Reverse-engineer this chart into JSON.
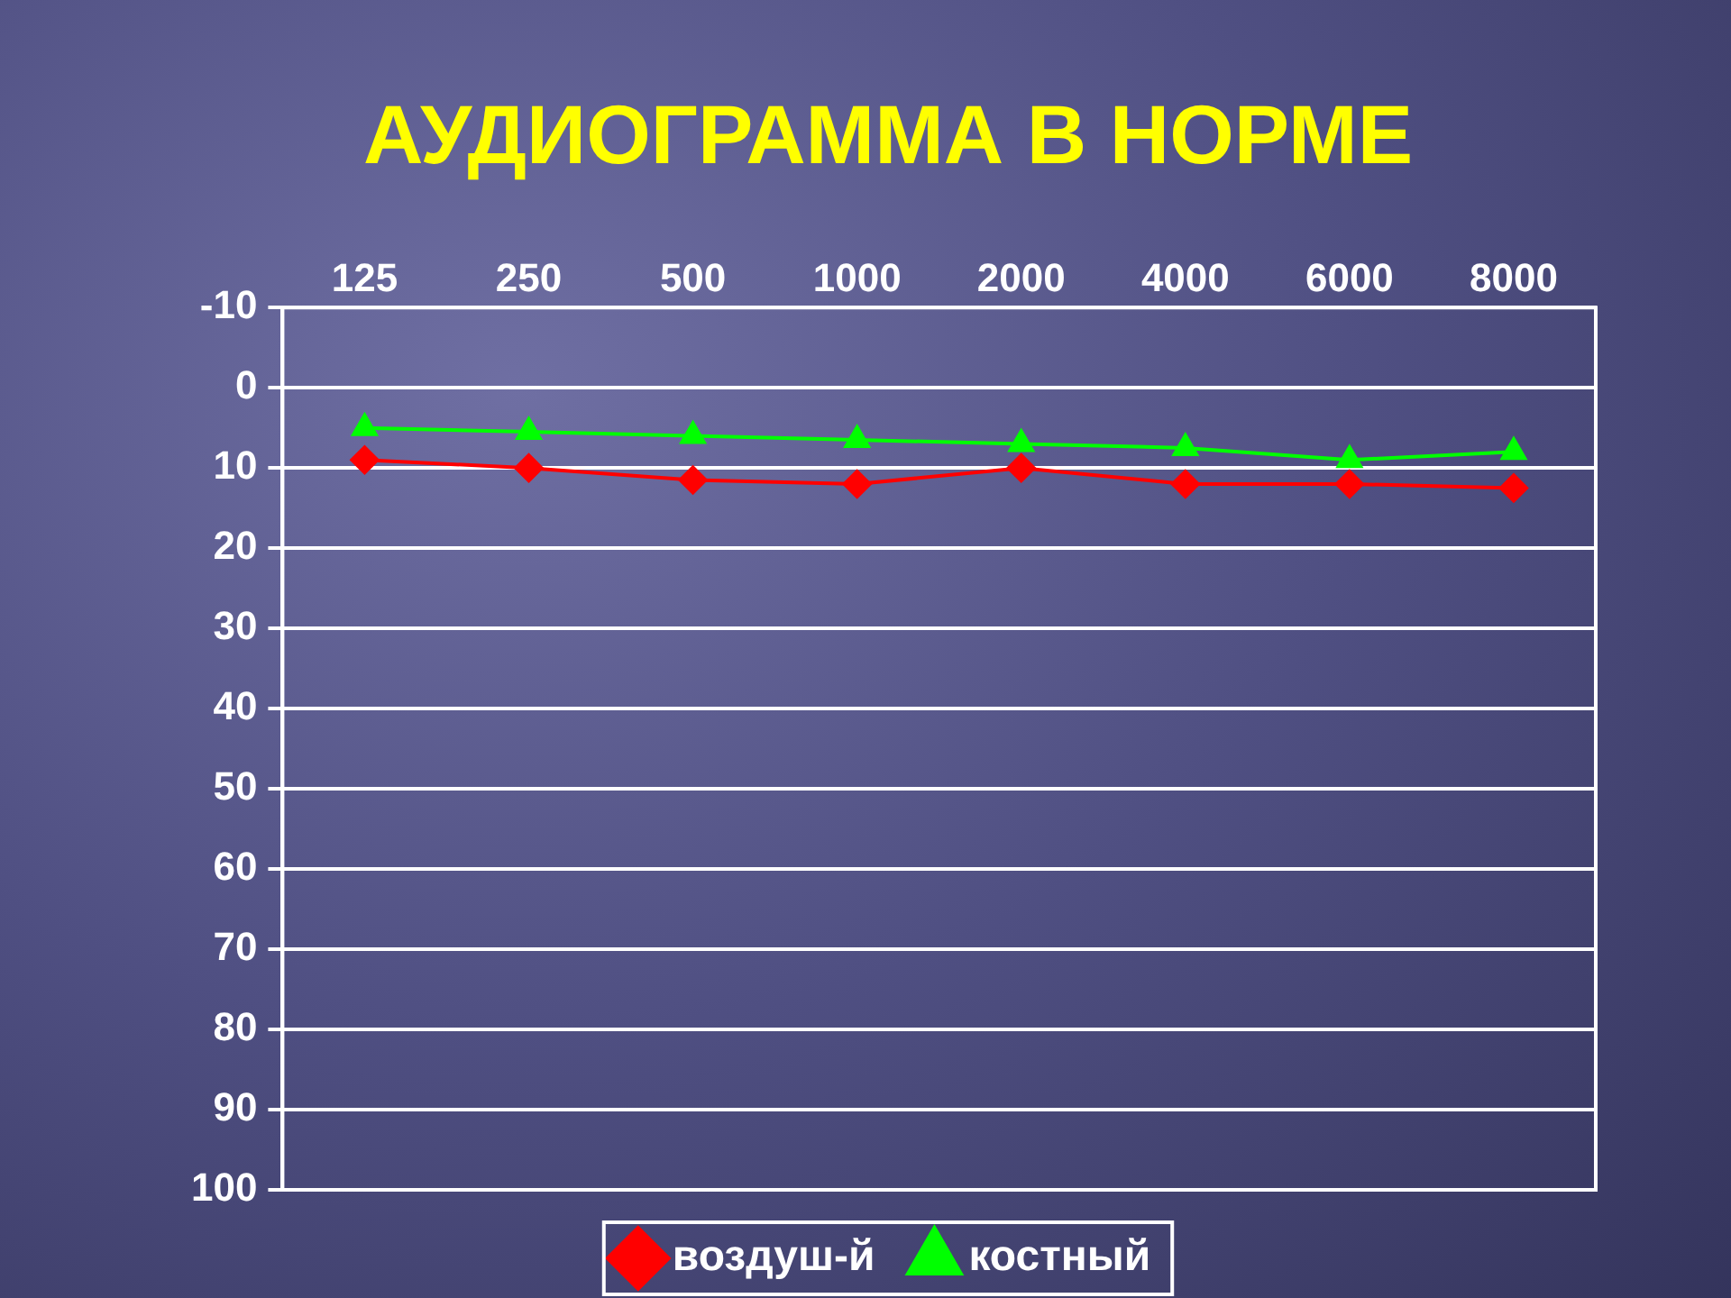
{
  "chart_data": {
    "type": "line",
    "title": "АУДИОГРАММА В НОРМЕ",
    "categories": [
      "125",
      "250",
      "500",
      "1000",
      "2000",
      "4000",
      "6000",
      "8000"
    ],
    "series": [
      {
        "name": "воздуш-й",
        "color": "#ff0000",
        "marker": "diamond",
        "values": [
          9,
          10,
          11.5,
          12,
          10,
          12,
          12,
          12.5
        ]
      },
      {
        "name": "костный",
        "color": "#00ff00",
        "marker": "triangle",
        "values": [
          5,
          5.5,
          6,
          6.5,
          7,
          7.5,
          9,
          8
        ]
      }
    ],
    "ylim": [
      100,
      -10
    ],
    "yticks": [
      -10,
      0,
      10,
      20,
      30,
      40,
      50,
      60,
      70,
      80,
      90,
      100
    ],
    "grid": "y",
    "legend": "bottom",
    "line_style": "solid"
  }
}
